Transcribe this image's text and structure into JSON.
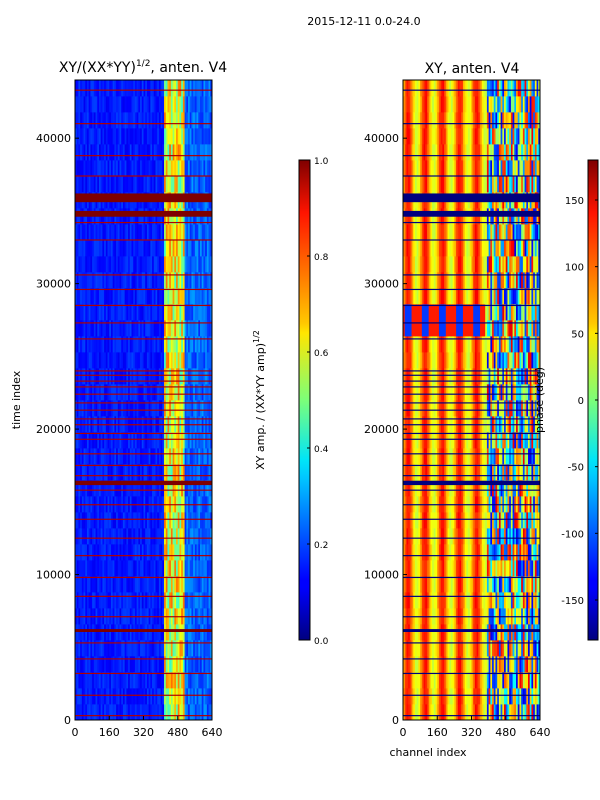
{
  "figure": {
    "suptitle": "2015-12-11 0.0-24.0"
  },
  "chart_data": [
    {
      "type": "heatmap",
      "title": "XY/(XX*YY)",
      "title_superscript": "1/2",
      "title_suffix": ", anten. V4",
      "xlabel": "",
      "ylabel": "time index",
      "xlim": [
        0,
        640
      ],
      "ylim": [
        0,
        44000
      ],
      "xticks": [
        "0",
        "160",
        "320",
        "480",
        "640"
      ],
      "yticks": [
        "0",
        "10000",
        "20000",
        "30000",
        "40000"
      ],
      "colorbar": {
        "label": "XY amp. / (XX*YY amp)",
        "label_superscript": "1/2",
        "range": [
          0.0,
          1.0
        ],
        "ticks": [
          "0.0",
          "0.2",
          "0.4",
          "0.6",
          "0.8",
          "1.0"
        ],
        "colormap": "jet"
      },
      "features": {
        "background_value": 0.15,
        "bright_band_channels": [
          415,
          505
        ],
        "bright_band_value": 0.6,
        "full_flag_rows": [
          [
            6050,
            6250
          ],
          [
            16150,
            16450
          ],
          [
            34600,
            35000
          ],
          [
            35600,
            36200
          ]
        ],
        "flag_line_rows": [
          300,
          1700,
          3200,
          4200,
          5300,
          7100,
          8500,
          9800,
          11300,
          12500,
          13800,
          14800,
          15800,
          16800,
          17500,
          18300,
          19300,
          19700,
          20300,
          20700,
          21300,
          21800,
          22400,
          22900,
          23300,
          23700,
          24000,
          26200,
          27300,
          28500,
          29600,
          30600,
          33000,
          34200,
          37400,
          38800,
          41000,
          43300
        ]
      }
    },
    {
      "type": "heatmap",
      "title": "XY, anten. V4",
      "xlabel": "channel index",
      "ylabel": "",
      "xlim": [
        0,
        640
      ],
      "ylim": [
        0,
        44000
      ],
      "xticks": [
        "0",
        "160",
        "320",
        "480",
        "640"
      ],
      "yticks": [
        "0",
        "10000",
        "20000",
        "30000",
        "40000"
      ],
      "colorbar": {
        "label": "phase (deg)",
        "range": [
          -180,
          180
        ],
        "ticks": [
          "-150",
          "-100",
          "-50",
          "0",
          "50",
          "100",
          "150"
        ],
        "colormap": "jet"
      },
      "features": {
        "stripe_period_channels": 80,
        "noisy_channels_from": 390,
        "full_flag_rows": [
          [
            6050,
            6250
          ],
          [
            16150,
            16450
          ],
          [
            34600,
            35000
          ],
          [
            35600,
            36200
          ]
        ],
        "flag_line_rows": [
          300,
          1700,
          3200,
          4200,
          5300,
          7100,
          8500,
          9800,
          11300,
          12500,
          13800,
          14800,
          15800,
          16800,
          17500,
          18300,
          19300,
          19700,
          20300,
          20700,
          21300,
          21800,
          22400,
          22900,
          23300,
          23700,
          24000,
          26200,
          27300,
          28500,
          29600,
          30600,
          33000,
          34200,
          37400,
          38800,
          41000,
          43300
        ]
      }
    }
  ]
}
